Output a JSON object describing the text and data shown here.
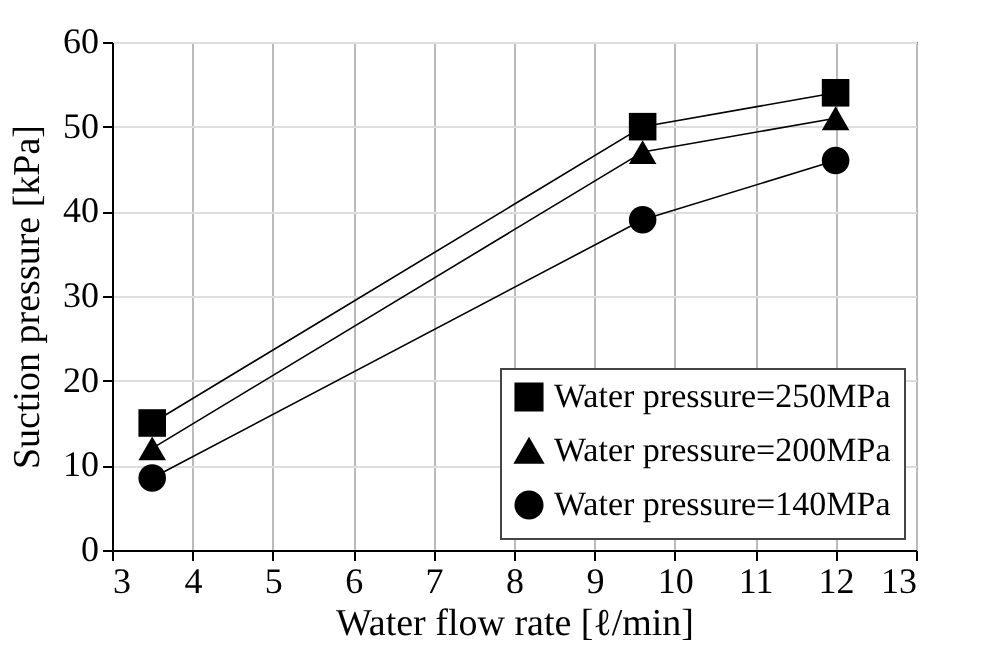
{
  "chart_data": {
    "type": "line",
    "xlabel": "Water flow rate [ℓ/min]",
    "ylabel": "Suction pressure [kPa]",
    "x": [
      3.5,
      9.6,
      12
    ],
    "series": [
      {
        "name": "Water pressure=250MPa",
        "color": "#000000",
        "marker": "square",
        "values": [
          15,
          50,
          54
        ]
      },
      {
        "name": "Water pressure=200MPa",
        "color": "#000000",
        "marker": "triangle",
        "values": [
          12,
          47,
          51
        ]
      },
      {
        "name": "Water pressure=140MPa",
        "color": "#000000",
        "marker": "circle",
        "values": [
          8.5,
          39,
          46
        ]
      }
    ],
    "xlim": [
      3,
      13
    ],
    "xticks": [
      3,
      4,
      5,
      6,
      7,
      8,
      9,
      10,
      11,
      12,
      13
    ],
    "ylim": [
      0,
      60
    ],
    "yticks": [
      0,
      10,
      20,
      30,
      40,
      50,
      60
    ],
    "grid": true,
    "legend": "bottom right",
    "line_style": "solid"
  }
}
